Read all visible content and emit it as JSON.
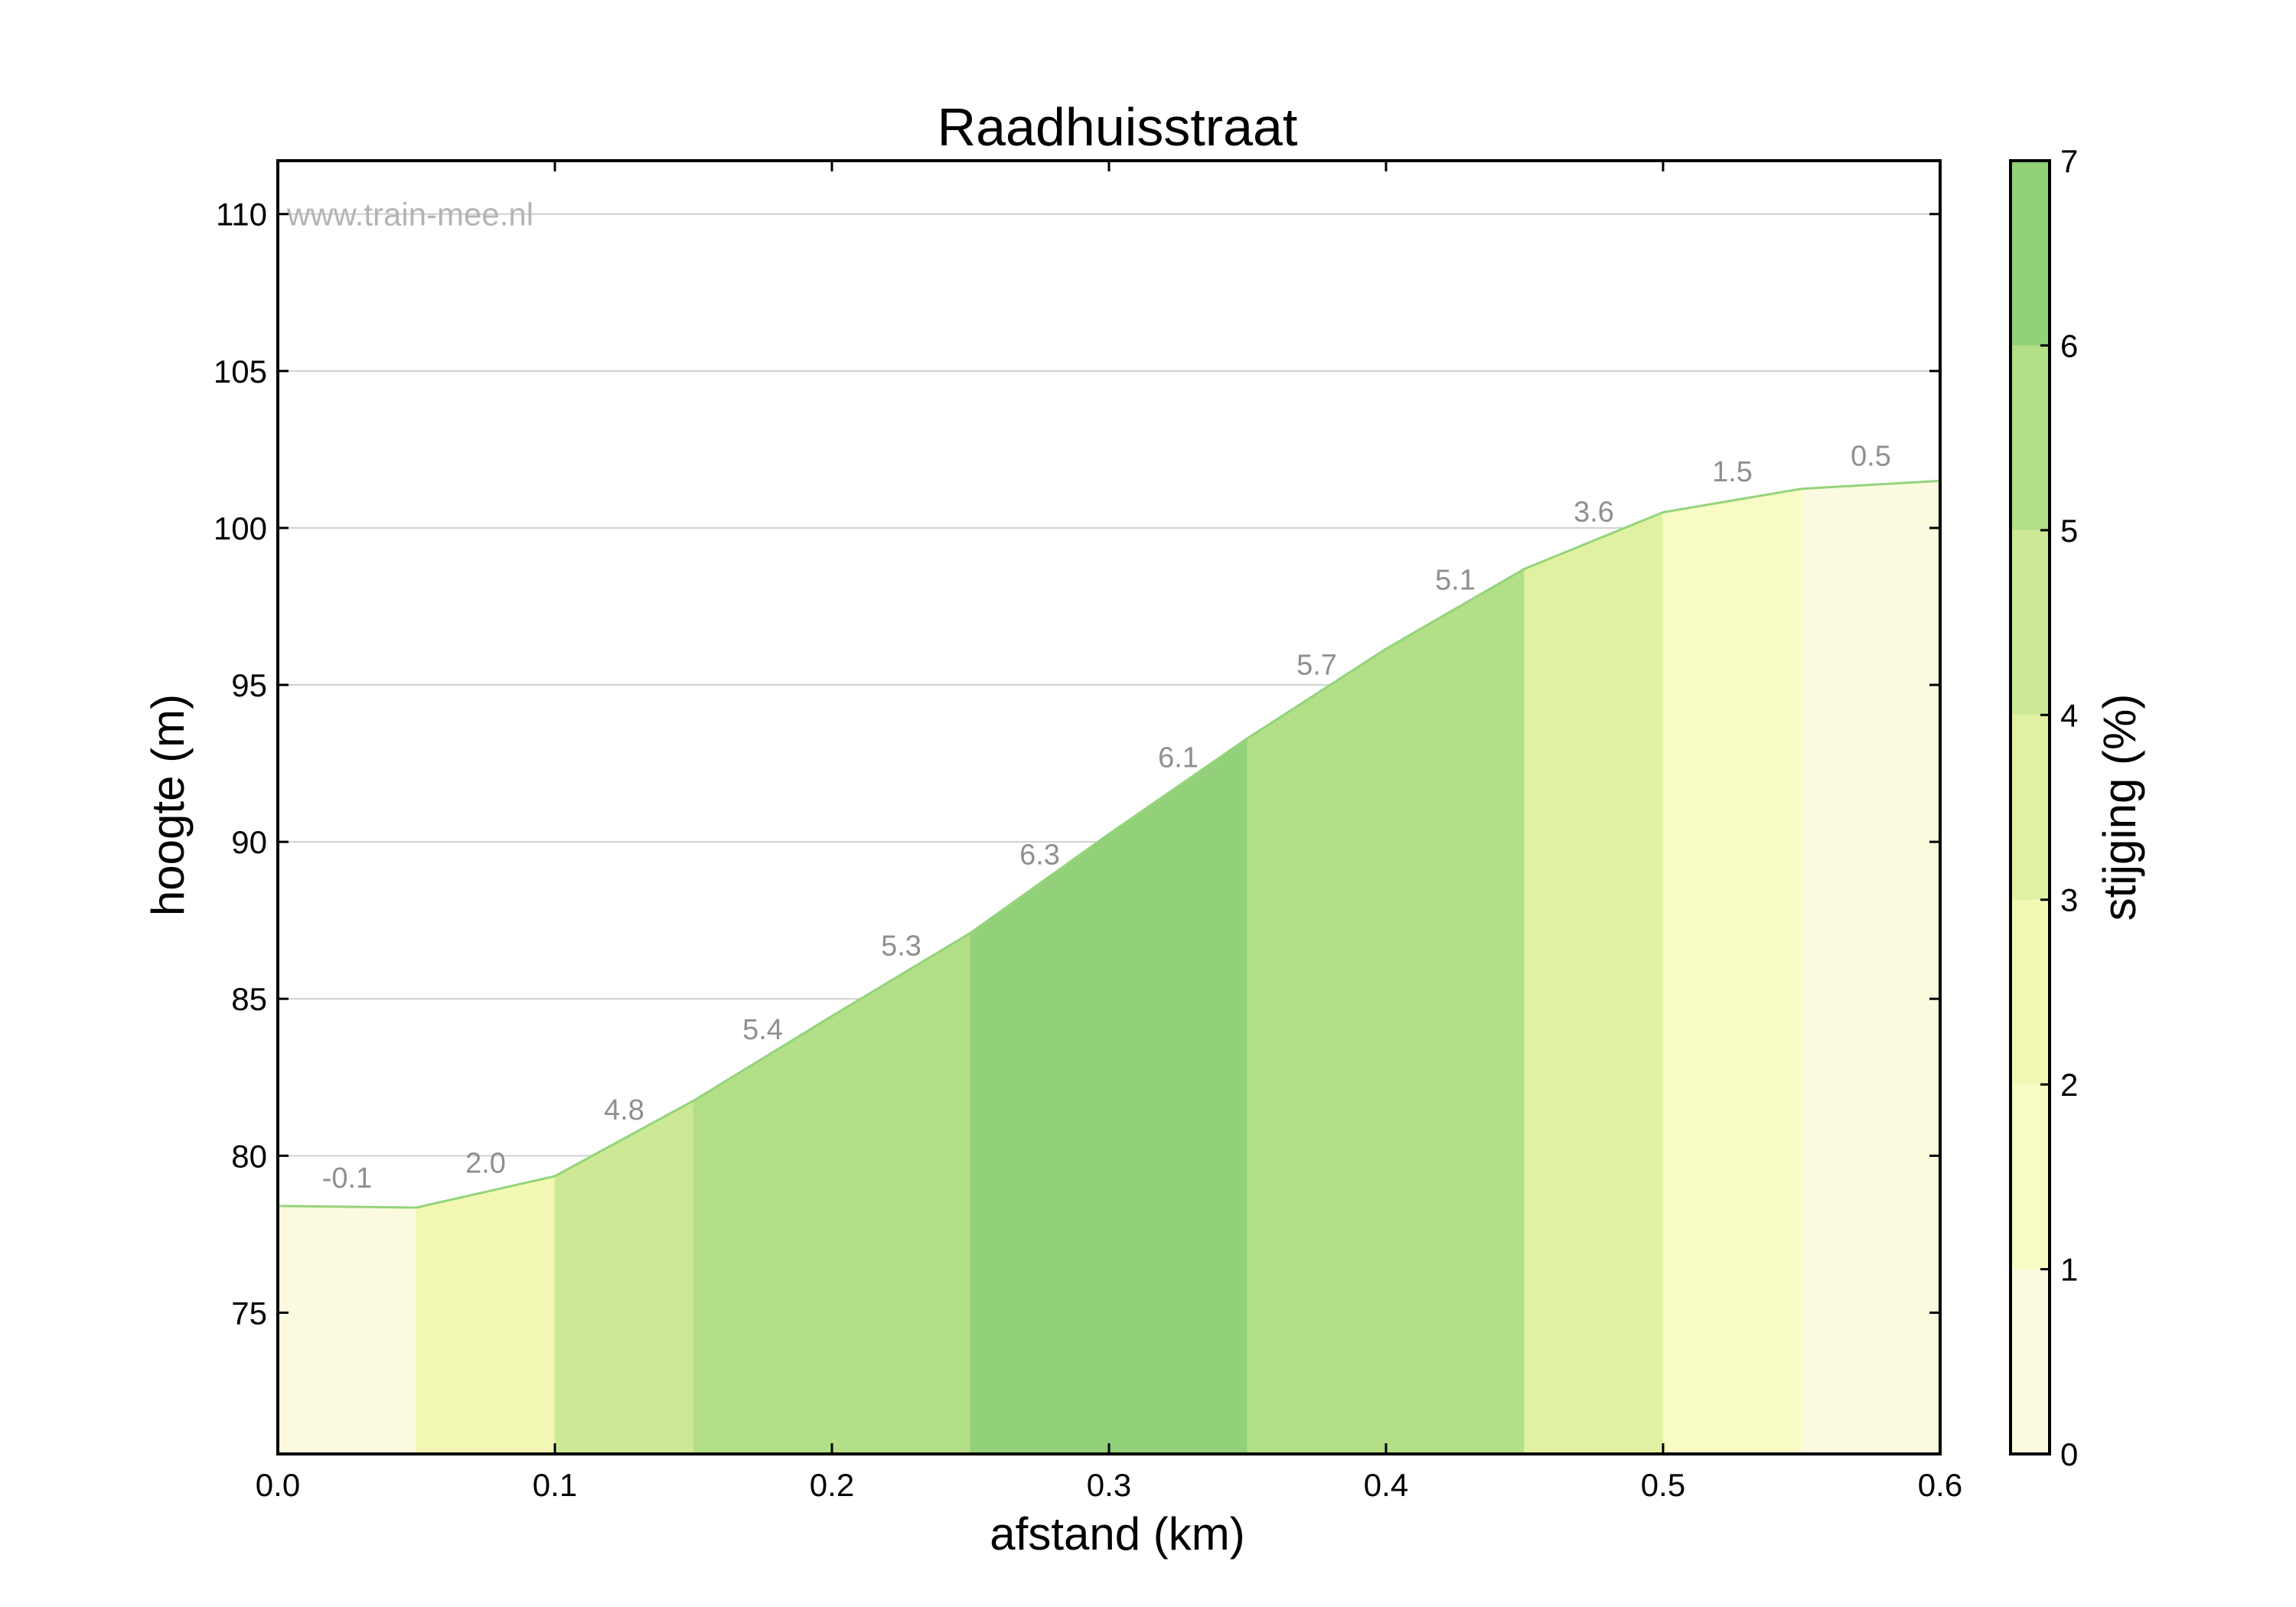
{
  "chart_data": {
    "type": "area",
    "title": "Raadhuisstraat",
    "xlabel": "afstand (km)",
    "ylabel": "hoogte (m)",
    "xlim": [
      0.0,
      0.6
    ],
    "ylim": [
      70.5,
      111.7
    ],
    "xticks": [
      "0.0",
      "0.1",
      "0.2",
      "0.3",
      "0.4",
      "0.5",
      "0.6"
    ],
    "yticks": [
      "75",
      "80",
      "85",
      "90",
      "95",
      "100",
      "105",
      "110"
    ],
    "grid": true,
    "watermark": "www.train-mee.nl",
    "profile": {
      "x": [
        0.0,
        0.05,
        0.1,
        0.15,
        0.2,
        0.25,
        0.3,
        0.35,
        0.4,
        0.45,
        0.5,
        0.55,
        0.6
      ],
      "y": [
        78.4,
        78.35,
        79.35,
        81.75,
        84.45,
        87.1,
        90.25,
        93.3,
        96.15,
        98.7,
        100.5,
        101.25,
        101.5
      ]
    },
    "segments": [
      {
        "x0": 0.0,
        "x1": 0.05,
        "grade": "-0.1"
      },
      {
        "x0": 0.05,
        "x1": 0.1,
        "grade": "2.0"
      },
      {
        "x0": 0.1,
        "x1": 0.15,
        "grade": "4.8"
      },
      {
        "x0": 0.15,
        "x1": 0.2,
        "grade": "5.4"
      },
      {
        "x0": 0.2,
        "x1": 0.25,
        "grade": "5.3"
      },
      {
        "x0": 0.25,
        "x1": 0.3,
        "grade": "6.3"
      },
      {
        "x0": 0.3,
        "x1": 0.35,
        "grade": "6.1"
      },
      {
        "x0": 0.35,
        "x1": 0.4,
        "grade": "5.7"
      },
      {
        "x0": 0.4,
        "x1": 0.45,
        "grade": "5.1"
      },
      {
        "x0": 0.45,
        "x1": 0.5,
        "grade": "3.6"
      },
      {
        "x0": 0.5,
        "x1": 0.55,
        "grade": "1.5"
      },
      {
        "x0": 0.55,
        "x1": 0.6,
        "grade": "0.5"
      }
    ],
    "colorbar": {
      "label": "stijging (%)",
      "range": [
        0,
        7
      ],
      "ticks": [
        "0",
        "1",
        "2",
        "3",
        "4",
        "5",
        "6",
        "7"
      ],
      "colors": [
        "#fbfadf",
        "#f8fbc3",
        "#f2f8b3",
        "#e1f1a2",
        "#cde996",
        "#b3df88",
        "#93d07a"
      ]
    },
    "line_color": "#94d47c"
  }
}
